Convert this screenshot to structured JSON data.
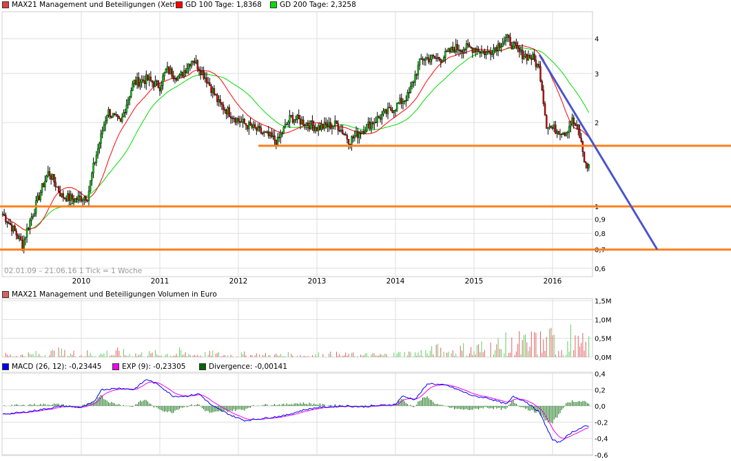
{
  "legend": {
    "price": {
      "label": "MAX21 Management und Beteiligungen (Xetra)",
      "color": "#e04040"
    },
    "gd100": {
      "label": "GD 100 Tage: 1,8368",
      "color": "#ff0000"
    },
    "gd200": {
      "label": "GD 200 Tage: 2,3258",
      "color": "#00dd00"
    },
    "volume": {
      "label": "MAX21 Management und Beteiligungen Volumen in Euro",
      "color": "#d86060"
    },
    "macd": {
      "label": "MACD (26, 12): -0,23445",
      "color": "#0000ee"
    },
    "exp": {
      "label": "EXP (9): -0,23305",
      "color": "#ee00ee"
    },
    "divergence": {
      "label": "Divergence: -0,00141",
      "color": "#006600"
    }
  },
  "range_label": "02.01.09 – 21.06.16   1 Tick = 1 Woche",
  "chart_data": [
    {
      "type": "candlestick",
      "scale": "log",
      "ylim": [
        0.6,
        4.5
      ],
      "yticks": [
        "4",
        "3",
        "2",
        "1",
        "0,9",
        "0,8",
        "0,7",
        "0,6"
      ],
      "ytick_values": [
        4,
        3,
        2,
        1,
        0.9,
        0.8,
        0.7,
        0.6
      ],
      "xticks": [
        "2010",
        "2011",
        "2012",
        "2013",
        "2014",
        "2015",
        "2016"
      ],
      "closes": [
        [
          "2009-01",
          0.94
        ],
        [
          "2009-04",
          0.73
        ],
        [
          "2009-06",
          1.0
        ],
        [
          "2009-08",
          1.33
        ],
        [
          "2009-10",
          1.09
        ],
        [
          "2009-12",
          1.06
        ],
        [
          "2010-02",
          1.09
        ],
        [
          "2010-04",
          1.77
        ],
        [
          "2010-05",
          2.2
        ],
        [
          "2010-07",
          1.98
        ],
        [
          "2010-09",
          2.78
        ],
        [
          "2010-11",
          2.86
        ],
        [
          "2011-01",
          2.7
        ],
        [
          "2011-02",
          3.1
        ],
        [
          "2011-04",
          2.9
        ],
        [
          "2011-06",
          3.4
        ],
        [
          "2011-08",
          2.9
        ],
        [
          "2011-10",
          2.34
        ],
        [
          "2012-01",
          2.03
        ],
        [
          "2012-04",
          1.87
        ],
        [
          "2012-07",
          1.71
        ],
        [
          "2012-09",
          2.09
        ],
        [
          "2013-01",
          1.92
        ],
        [
          "2013-04",
          1.97
        ],
        [
          "2013-06",
          1.72
        ],
        [
          "2013-09",
          1.97
        ],
        [
          "2014-01",
          2.28
        ],
        [
          "2014-03",
          2.5
        ],
        [
          "2014-05",
          3.4
        ],
        [
          "2014-08",
          3.4
        ],
        [
          "2014-10",
          3.7
        ],
        [
          "2015-01",
          3.7
        ],
        [
          "2015-03",
          3.55
        ],
        [
          "2015-06",
          4.0
        ],
        [
          "2015-08",
          3.55
        ],
        [
          "2015-10",
          3.4
        ],
        [
          "2015-11",
          3.1
        ],
        [
          "2015-12",
          1.98
        ],
        [
          "2016-01",
          1.9
        ],
        [
          "2016-03",
          1.85
        ],
        [
          "2016-04",
          2.03
        ],
        [
          "2016-05",
          1.85
        ],
        [
          "2016-06",
          1.4
        ]
      ],
      "support_lines": [
        0.7,
        1.0,
        1.65
      ],
      "trend_line": [
        [
          "2015-11",
          3.5
        ],
        [
          "2017-05",
          0.7
        ]
      ]
    },
    {
      "type": "bar",
      "name": "Volumen",
      "yticks": [
        "1,5M",
        "1,0M",
        "0,5M",
        "0,0M"
      ],
      "ylim": [
        0,
        1.5
      ],
      "quarterly_volume_m": [
        0.06,
        0.08,
        0.12,
        0.1,
        0.1,
        0.12,
        0.1,
        0.09,
        0.12,
        0.1,
        0.08,
        0.07,
        0.07,
        0.06,
        0.06,
        0.06,
        0.07,
        0.06,
        0.06,
        0.07,
        0.1,
        0.14,
        0.18,
        0.2,
        0.25,
        0.3,
        0.35,
        0.4,
        0.45,
        0.3
      ]
    },
    {
      "type": "line",
      "yticks": [
        "0,4",
        "0,2",
        "0,0",
        "-0,2",
        "-0,4",
        "-0,6"
      ],
      "ylim": [
        -0.6,
        0.4
      ],
      "macd": [
        [
          "2009-01",
          -0.1
        ],
        [
          "2009-04",
          -0.08
        ],
        [
          "2009-08",
          -0.03
        ],
        [
          "2009-10",
          0.0
        ],
        [
          "2010-01",
          -0.02
        ],
        [
          "2010-03",
          0.05
        ],
        [
          "2010-04",
          0.2
        ],
        [
          "2010-07",
          0.22
        ],
        [
          "2010-09",
          0.2
        ],
        [
          "2010-11",
          0.33
        ],
        [
          "2011-01",
          0.25
        ],
        [
          "2011-03",
          0.12
        ],
        [
          "2011-05",
          0.12
        ],
        [
          "2011-07",
          0.15
        ],
        [
          "2011-09",
          0.0
        ],
        [
          "2011-12",
          -0.12
        ],
        [
          "2012-02",
          -0.18
        ],
        [
          "2012-05",
          -0.15
        ],
        [
          "2012-08",
          -0.12
        ],
        [
          "2012-11",
          -0.05
        ],
        [
          "2013-01",
          -0.02
        ],
        [
          "2013-05",
          0.0
        ],
        [
          "2013-08",
          -0.01
        ],
        [
          "2014-01",
          0.02
        ],
        [
          "2014-02",
          0.12
        ],
        [
          "2014-04",
          0.08
        ],
        [
          "2014-06",
          0.28
        ],
        [
          "2014-09",
          0.25
        ],
        [
          "2015-01",
          0.12
        ],
        [
          "2015-03",
          0.1
        ],
        [
          "2015-06",
          0.02
        ],
        [
          "2015-07",
          0.12
        ],
        [
          "2015-09",
          0.05
        ],
        [
          "2015-11",
          -0.08
        ],
        [
          "2016-01",
          -0.42
        ],
        [
          "2016-02",
          -0.45
        ],
        [
          "2016-04",
          -0.32
        ],
        [
          "2016-06",
          -0.25
        ]
      ]
    }
  ]
}
